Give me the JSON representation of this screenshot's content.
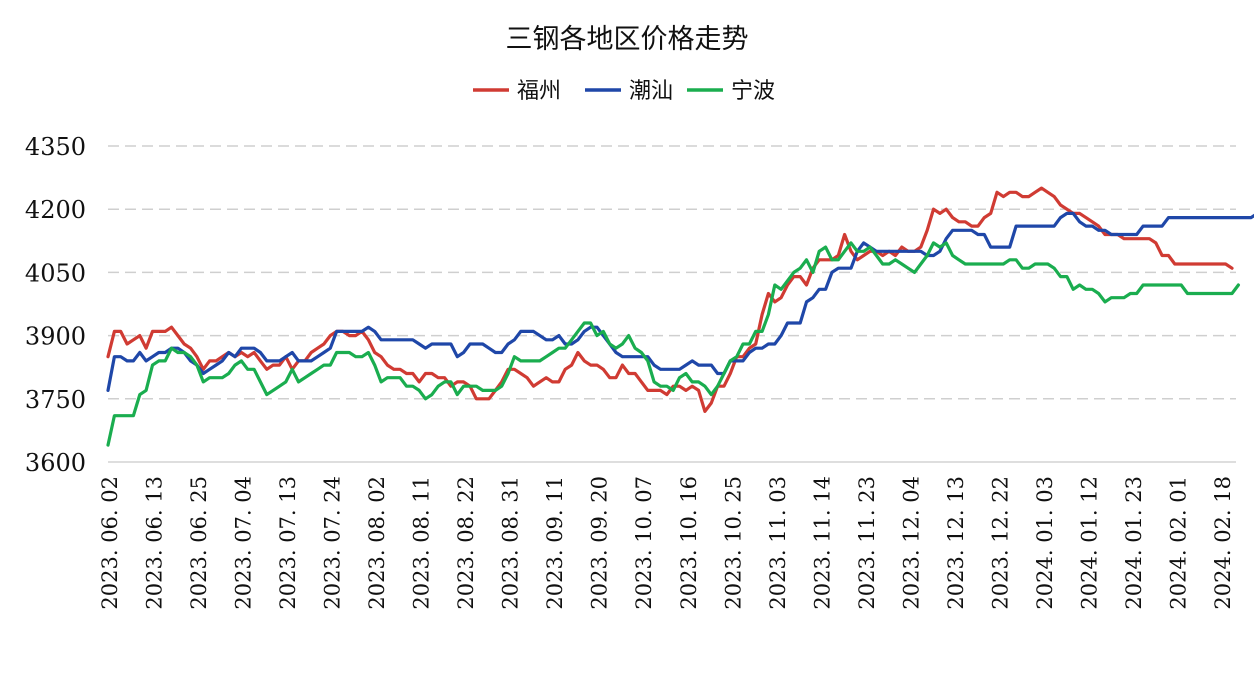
{
  "chart_data": {
    "type": "line",
    "title": "三钢各地区价格走势",
    "xlabel": "",
    "ylabel": "",
    "ylim": [
      3600,
      4350
    ],
    "yticks": [
      3600,
      3750,
      3900,
      4050,
      4200,
      4350
    ],
    "grid": true,
    "legend_position": "top-center",
    "xtick_labels": [
      "2023.06.02",
      "2023.06.13",
      "2023.06.25",
      "2023.07.04",
      "2023.07.13",
      "2023.07.24",
      "2023.08.02",
      "2023.08.11",
      "2023.08.22",
      "2023.08.31",
      "2023.09.11",
      "2023.09.20",
      "2023.10.07",
      "2023.10.16",
      "2023.10.25",
      "2023.11.03",
      "2023.11.14",
      "2023.11.23",
      "2023.12.04",
      "2023.12.13",
      "2023.12.22",
      "2024.01.03",
      "2024.01.12",
      "2024.01.23",
      "2024.02.01",
      "2024.02.18"
    ],
    "series": [
      {
        "name": "福州",
        "color": "#d03b33",
        "values": [
          3850,
          3910,
          3910,
          3880,
          3890,
          3900,
          3870,
          3910,
          3910,
          3910,
          3920,
          3900,
          3880,
          3870,
          3850,
          3820,
          3840,
          3840,
          3850,
          3860,
          3850,
          3860,
          3850,
          3860,
          3840,
          3820,
          3830,
          3830,
          3850,
          3820,
          3840,
          3840,
          3860,
          3870,
          3880,
          3900,
          3910,
          3910,
          3900,
          3900,
          3910,
          3890,
          3860,
          3850,
          3830,
          3820,
          3820,
          3810,
          3810,
          3790,
          3810,
          3810,
          3800,
          3800,
          3780,
          3790,
          3790,
          3780,
          3750,
          3750,
          3750,
          3770,
          3790,
          3820,
          3820,
          3810,
          3800,
          3780,
          3790,
          3800,
          3790,
          3790,
          3820,
          3830,
          3860,
          3840,
          3830,
          3830,
          3820,
          3800,
          3800,
          3830,
          3810,
          3810,
          3790,
          3770,
          3770,
          3770,
          3760,
          3780,
          3780,
          3770,
          3780,
          3770,
          3720,
          3740,
          3780,
          3780,
          3810,
          3850,
          3850,
          3870,
          3880,
          3950,
          4000,
          3980,
          3990,
          4020,
          4040,
          4040,
          4020,
          4060,
          4080,
          4080,
          4080,
          4090,
          4140,
          4100,
          4080,
          4090,
          4100,
          4100,
          4090,
          4100,
          4090,
          4110,
          4100,
          4100,
          4110,
          4150,
          4200,
          4190,
          4200,
          4180,
          4170,
          4170,
          4160,
          4160,
          4180,
          4190,
          4240,
          4230,
          4240,
          4240,
          4230,
          4230,
          4240,
          4250,
          4240,
          4230,
          4210,
          4200,
          4190,
          4190,
          4180,
          4170,
          4160,
          4140,
          4140,
          4140,
          4130,
          4130,
          4130,
          4130,
          4130,
          4120,
          4090,
          4090,
          4070,
          4070,
          4070,
          4070,
          4070,
          4070,
          4070,
          4070,
          4070,
          4060
        ]
      },
      {
        "name": "潮汕",
        "color": "#1f47a8",
        "values": [
          3770,
          3850,
          3850,
          3840,
          3840,
          3860,
          3840,
          3850,
          3860,
          3860,
          3870,
          3870,
          3860,
          3840,
          3830,
          3810,
          3820,
          3830,
          3840,
          3860,
          3850,
          3870,
          3870,
          3870,
          3860,
          3840,
          3840,
          3840,
          3850,
          3860,
          3840,
          3840,
          3840,
          3850,
          3860,
          3870,
          3910,
          3910,
          3910,
          3910,
          3910,
          3920,
          3910,
          3890,
          3890,
          3890,
          3890,
          3890,
          3890,
          3880,
          3870,
          3880,
          3880,
          3880,
          3880,
          3850,
          3860,
          3880,
          3880,
          3880,
          3870,
          3860,
          3860,
          3880,
          3890,
          3910,
          3910,
          3910,
          3900,
          3890,
          3890,
          3900,
          3880,
          3880,
          3890,
          3910,
          3920,
          3920,
          3900,
          3880,
          3860,
          3850,
          3850,
          3850,
          3850,
          3850,
          3830,
          3820,
          3820,
          3820,
          3820,
          3830,
          3840,
          3830,
          3830,
          3830,
          3810,
          3810,
          3840,
          3840,
          3840,
          3860,
          3870,
          3870,
          3880,
          3880,
          3900,
          3930,
          3930,
          3930,
          3980,
          3990,
          4010,
          4010,
          4050,
          4060,
          4060,
          4060,
          4100,
          4120,
          4110,
          4100,
          4100,
          4100,
          4100,
          4100,
          4100,
          4100,
          4100,
          4090,
          4090,
          4100,
          4130,
          4150,
          4150,
          4150,
          4150,
          4140,
          4140,
          4110,
          4110,
          4110,
          4110,
          4160,
          4160,
          4160,
          4160,
          4160,
          4160,
          4160,
          4180,
          4190,
          4190,
          4170,
          4160,
          4160,
          4150,
          4150,
          4140,
          4140,
          4140,
          4140,
          4140,
          4160,
          4160,
          4160,
          4160,
          4180,
          4180,
          4180,
          4180,
          4180,
          4180,
          4180,
          4180,
          4180,
          4180,
          4180,
          4180,
          4180,
          4180,
          4190,
          4190
        ]
      },
      {
        "name": "宁波",
        "color": "#1aad4f",
        "values": [
          3640,
          3710,
          3710,
          3710,
          3710,
          3760,
          3770,
          3830,
          3840,
          3840,
          3870,
          3860,
          3860,
          3850,
          3830,
          3790,
          3800,
          3800,
          3800,
          3810,
          3830,
          3840,
          3820,
          3820,
          3790,
          3760,
          3770,
          3780,
          3790,
          3820,
          3790,
          3800,
          3810,
          3820,
          3830,
          3830,
          3860,
          3860,
          3860,
          3850,
          3850,
          3860,
          3830,
          3790,
          3800,
          3800,
          3800,
          3780,
          3780,
          3770,
          3750,
          3760,
          3780,
          3790,
          3790,
          3760,
          3780,
          3780,
          3780,
          3770,
          3770,
          3770,
          3780,
          3810,
          3850,
          3840,
          3840,
          3840,
          3840,
          3850,
          3860,
          3870,
          3870,
          3890,
          3910,
          3930,
          3930,
          3900,
          3910,
          3880,
          3870,
          3880,
          3900,
          3870,
          3860,
          3840,
          3790,
          3780,
          3780,
          3770,
          3800,
          3810,
          3790,
          3790,
          3780,
          3760,
          3780,
          3810,
          3840,
          3850,
          3880,
          3880,
          3910,
          3910,
          3950,
          4020,
          4010,
          4030,
          4050,
          4060,
          4080,
          4050,
          4100,
          4110,
          4080,
          4080,
          4100,
          4120,
          4100,
          4100,
          4110,
          4090,
          4070,
          4070,
          4080,
          4070,
          4060,
          4050,
          4070,
          4090,
          4120,
          4110,
          4120,
          4090,
          4080,
          4070,
          4070,
          4070,
          4070,
          4070,
          4070,
          4070,
          4080,
          4080,
          4060,
          4060,
          4070,
          4070,
          4070,
          4060,
          4040,
          4040,
          4010,
          4020,
          4010,
          4010,
          4000,
          3980,
          3990,
          3990,
          3990,
          4000,
          4000,
          4020,
          4020,
          4020,
          4020,
          4020,
          4020,
          4020,
          4000,
          4000,
          4000,
          4000,
          4000,
          4000,
          4000,
          4000,
          4020
        ]
      }
    ]
  }
}
